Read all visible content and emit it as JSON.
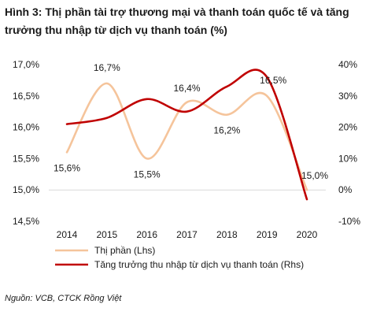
{
  "title": "Hình 3: Thị phần tài trợ thương mại và thanh toán quốc tế và tăng trưởng thu nhập từ dịch vụ thanh toán (%)",
  "source": "Nguồn: VCB, CTCK Rồng Việt",
  "colors": {
    "lhs": "#f5c49b",
    "rhs": "#c00000",
    "zero_line": "#d9d9d9"
  },
  "chart_data": {
    "type": "line",
    "categories": [
      "2014",
      "2015",
      "2016",
      "2017",
      "2018",
      "2019",
      "2020"
    ],
    "y_left": {
      "range": [
        14.5,
        17.0
      ],
      "ticks": [
        "14,5%",
        "15,0%",
        "15,5%",
        "16,0%",
        "16,5%",
        "17,0%"
      ],
      "tick_values": [
        14.5,
        15.0,
        15.5,
        16.0,
        16.5,
        17.0
      ]
    },
    "y_right": {
      "range": [
        -10,
        40
      ],
      "ticks": [
        "-10%",
        "0%",
        "10%",
        "20%",
        "30%",
        "40%"
      ],
      "tick_values": [
        -10,
        0,
        10,
        20,
        30,
        40
      ]
    },
    "series": [
      {
        "name": "Thị phần (Lhs)",
        "axis": "left",
        "values": [
          15.6,
          16.7,
          15.5,
          16.4,
          16.2,
          16.5,
          15.0
        ],
        "labels": [
          "15,6%",
          "16,7%",
          "15,5%",
          "16,4%",
          "16,2%",
          "16,5%",
          "15,0%"
        ]
      },
      {
        "name": "Tăng trưởng thu nhập từ dịch vụ thanh toán (Rhs)",
        "axis": "right",
        "values": [
          21,
          23,
          29,
          25,
          33,
          36,
          -3
        ]
      }
    ],
    "grid": false,
    "legend_position": "bottom-left"
  }
}
